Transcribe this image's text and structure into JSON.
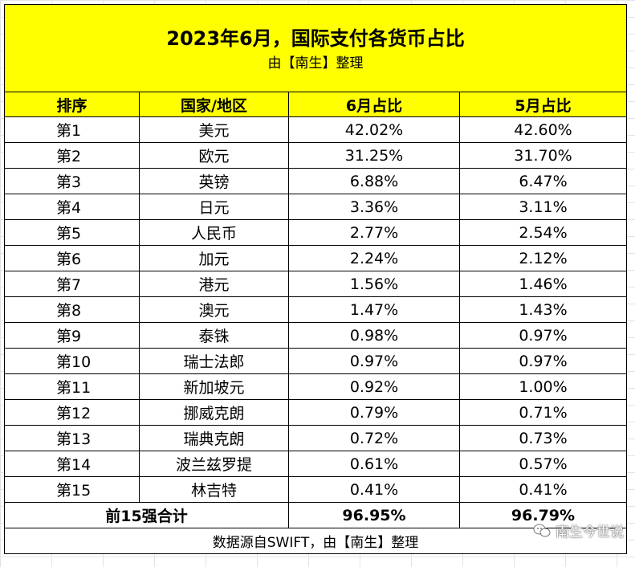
{
  "title": "2023年6月，国际支付各货币占比",
  "subtitle": "由【南生】整理",
  "headers": [
    "排序",
    "国家/地区",
    "6月占比",
    "5月占比"
  ],
  "rows": [
    {
      "rank": "第1",
      "currency": "美元",
      "june": "42.02%",
      "may": "42.60%"
    },
    {
      "rank": "第2",
      "currency": "欧元",
      "june": "31.25%",
      "may": "31.70%"
    },
    {
      "rank": "第3",
      "currency": "英镑",
      "june": "6.88%",
      "may": "6.47%"
    },
    {
      "rank": "第4",
      "currency": "日元",
      "june": "3.36%",
      "may": "3.11%"
    },
    {
      "rank": "第5",
      "currency": "人民币",
      "june": "2.77%",
      "may": "2.54%"
    },
    {
      "rank": "第6",
      "currency": "加元",
      "june": "2.24%",
      "may": "2.12%"
    },
    {
      "rank": "第7",
      "currency": "港元",
      "june": "1.56%",
      "may": "1.46%"
    },
    {
      "rank": "第8",
      "currency": "澳元",
      "june": "1.47%",
      "may": "1.43%"
    },
    {
      "rank": "第9",
      "currency": "泰铢",
      "june": "0.98%",
      "may": "0.97%"
    },
    {
      "rank": "第10",
      "currency": "瑞士法郎",
      "june": "0.97%",
      "may": "0.97%"
    },
    {
      "rank": "第11",
      "currency": "新加坡元",
      "june": "0.92%",
      "may": "1.00%"
    },
    {
      "rank": "第12",
      "currency": "挪威克朗",
      "june": "0.79%",
      "may": "0.71%"
    },
    {
      "rank": "第13",
      "currency": "瑞典克朗",
      "june": "0.72%",
      "may": "0.73%"
    },
    {
      "rank": "第14",
      "currency": "波兰兹罗提",
      "june": "0.61%",
      "may": "0.57%"
    },
    {
      "rank": "第15",
      "currency": "林吉特",
      "june": "0.41%",
      "may": "0.41%"
    }
  ],
  "total": {
    "label": "前15强合计",
    "june": "96.95%",
    "may": "96.79%"
  },
  "footer": "数据源自SWIFT，由【南生】整理",
  "watermark": {
    "text": "南生今世说",
    "icon": "wechat-icon"
  },
  "colors": {
    "highlight": "#ffff00",
    "border": "#000000"
  }
}
